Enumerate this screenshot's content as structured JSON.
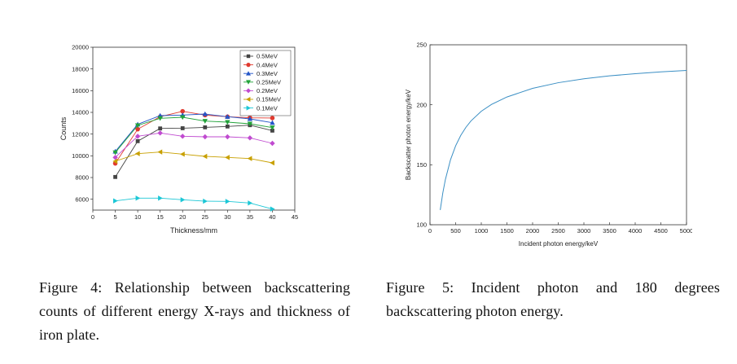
{
  "chart_data": [
    {
      "type": "line",
      "title": "",
      "xlabel": "Thickness/mm",
      "ylabel": "Counts",
      "xlim": [
        0,
        45
      ],
      "ylim": [
        5000,
        20000
      ],
      "x_ticks": [
        "0",
        "5",
        "10",
        "15",
        "20",
        "25",
        "30",
        "35",
        "40",
        "45"
      ],
      "y_ticks": [
        "6000",
        "8000",
        "10000",
        "12000",
        "14000",
        "16000",
        "18000",
        "20000"
      ],
      "grid": false,
      "legend_position": "top-right",
      "x": [
        5,
        10,
        15,
        20,
        25,
        30,
        35,
        40
      ],
      "series": [
        {
          "name": "0.5MeV",
          "marker": "square",
          "color": "#444444",
          "values": [
            8050,
            11350,
            12520,
            12540,
            12620,
            12700,
            12820,
            12320
          ]
        },
        {
          "name": "0.4MeV",
          "marker": "circle",
          "color": "#e03a2f",
          "values": [
            9300,
            12450,
            13600,
            14100,
            13750,
            13600,
            13500,
            13480
          ]
        },
        {
          "name": "0.3MeV",
          "marker": "triangle-up",
          "color": "#2456c8",
          "values": [
            10400,
            12900,
            13700,
            13750,
            13850,
            13600,
            13400,
            13050
          ]
        },
        {
          "name": "0.25MeV",
          "marker": "triangle-down",
          "color": "#22a33a",
          "values": [
            10300,
            12800,
            13450,
            13550,
            13200,
            13100,
            12950,
            12600
          ]
        },
        {
          "name": "0.2MeV",
          "marker": "diamond",
          "color": "#c04bd0",
          "values": [
            9850,
            11800,
            12100,
            11800,
            11750,
            11750,
            11650,
            11150
          ]
        },
        {
          "name": "0.15MeV",
          "marker": "triangle-left",
          "color": "#c8a000",
          "values": [
            9500,
            10200,
            10350,
            10150,
            9950,
            9850,
            9750,
            9350
          ]
        },
        {
          "name": "0.1MeV",
          "marker": "triangle-right",
          "color": "#1cc7d6",
          "values": [
            5850,
            6100,
            6100,
            5950,
            5820,
            5800,
            5650,
            5100
          ]
        }
      ]
    },
    {
      "type": "line",
      "title": "",
      "xlabel": "Incident photon energy/keV",
      "ylabel": "Backscatter photon energy/keV",
      "xlim": [
        0,
        5000
      ],
      "ylim": [
        100,
        250
      ],
      "x_ticks": [
        "0",
        "500",
        "1000",
        "1500",
        "2000",
        "2500",
        "3000",
        "3500",
        "4000",
        "4500",
        "5000"
      ],
      "y_ticks": [
        "100",
        "150",
        "200",
        "250"
      ],
      "grid": false,
      "line_color": "#3b8fc4",
      "x": [
        200,
        250,
        300,
        400,
        500,
        600,
        700,
        800,
        1000,
        1200,
        1500,
        2000,
        2500,
        3000,
        3500,
        4000,
        4500,
        5000
      ],
      "y": [
        112.3,
        126.5,
        137.7,
        154.2,
        165.8,
        174.5,
        181.2,
        186.6,
        194.6,
        200.3,
        206.5,
        213.7,
        218.4,
        221.7,
        224.1,
        225.9,
        227.4,
        228.6
      ]
    }
  ],
  "captions": {
    "fig4": "Figure 4: Relationship between backscattering counts of different energy X-rays and thickness of iron plate.",
    "fig5": "Figure 5:  Incident photon and 180 degrees backscattering photon energy."
  }
}
